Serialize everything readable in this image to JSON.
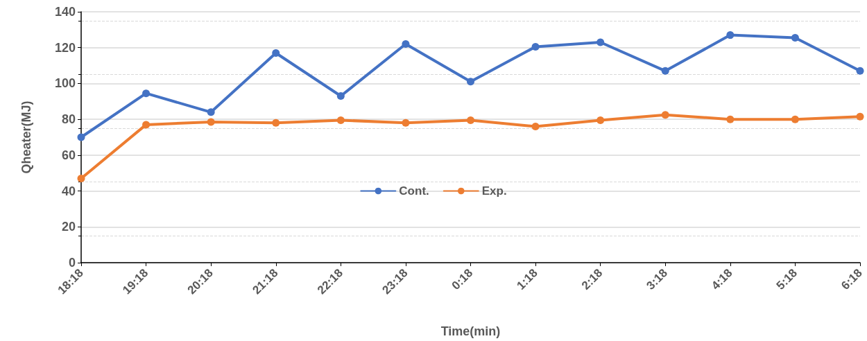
{
  "chart_data": {
    "type": "line",
    "xlabel": "Time(min)",
    "ylabel": "Qheater(MJ)",
    "categories": [
      "18:18",
      "19:18",
      "20:18",
      "21:18",
      "22:18",
      "23:18",
      "0:18",
      "1:18",
      "2:18",
      "3:18",
      "4:18",
      "5:18",
      "6:18"
    ],
    "series": [
      {
        "name": "Cont.",
        "color": "#4472c4",
        "values": [
          70,
          94.5,
          84,
          117,
          93,
          122,
          101,
          120.5,
          123,
          107,
          127,
          125.5,
          107
        ]
      },
      {
        "name": "Exp.",
        "color": "#ed7d31",
        "values": [
          47,
          77,
          78.5,
          78,
          79.5,
          78,
          79.5,
          76,
          79.5,
          82.5,
          80,
          80,
          81.5
        ]
      }
    ],
    "ylim": [
      0,
      140
    ],
    "yticks": [
      0,
      20,
      40,
      60,
      80,
      100,
      120,
      140
    ],
    "grid": true,
    "legend": "center",
    "marker": "circle",
    "line_style": "solid"
  }
}
